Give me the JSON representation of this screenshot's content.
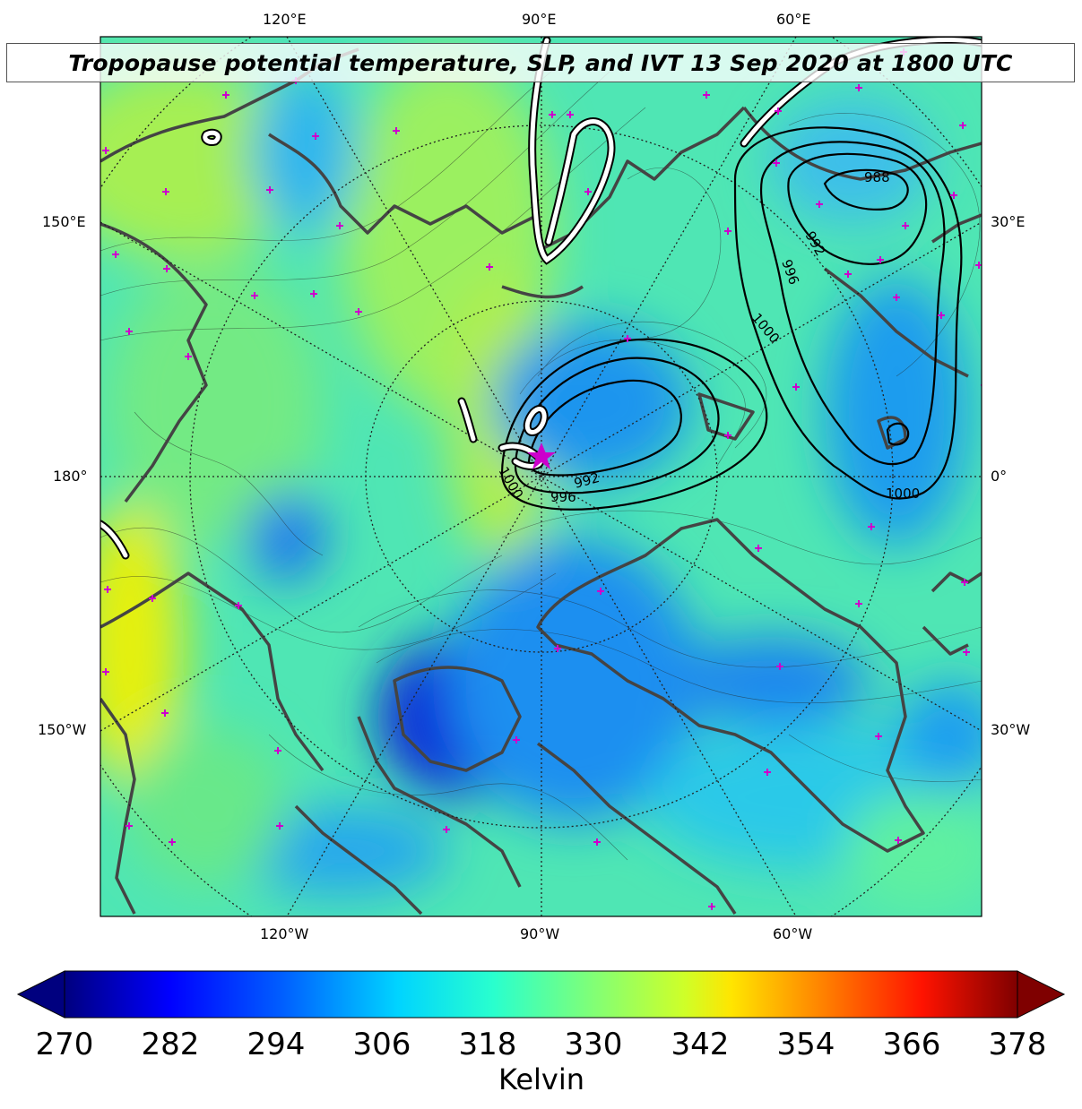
{
  "title": "Tropopause potential temperature, SLP, and IVT 13 Sep 2020 at 1800 UTC",
  "map_labels": {
    "top": [
      "120°E",
      "90°E",
      "60°E"
    ],
    "bottom": [
      "120°W",
      "90°W",
      "60°W"
    ],
    "left": [
      "150°E",
      "180°",
      "150°W"
    ],
    "right": [
      "30°E",
      "0°",
      "30°W"
    ]
  },
  "slp_contour_labels": [
    "988",
    "992",
    "996",
    "1000",
    "992",
    "996",
    "1000",
    "1000"
  ],
  "colorbar": {
    "ticks": [
      "270",
      "282",
      "294",
      "306",
      "318",
      "330",
      "342",
      "354",
      "366",
      "378"
    ],
    "min": 270,
    "max": 378,
    "label": "Kelvin",
    "extend": "both"
  },
  "colors": {
    "storm_marker": "#cc00cc",
    "coastline": "#444444",
    "ivt_contour": "#ffffff"
  }
}
